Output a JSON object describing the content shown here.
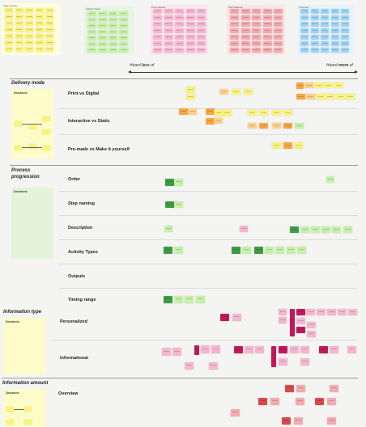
{
  "top_frames": {
    "titles": [
      "Step naming",
      "Activity Types",
      "Personalized",
      "Informational",
      "Overview"
    ]
  },
  "scale": {
    "less_pre": "Heard ",
    "less_em": "less",
    "less_post": " of",
    "more_pre": "Heard ",
    "more_em": "more",
    "more_post": " of"
  },
  "sections": {
    "delivery": {
      "title": "Delivery mode",
      "panel_title": "Decisions",
      "rows": [
        "Print vs Digital",
        "Interactive vs Static",
        "Pre-made vs Make it yourself"
      ]
    },
    "process": {
      "title_line1": "Process",
      "title_line2": "progression",
      "panel_title": "Decisions",
      "rows": [
        "Order",
        "Step naming",
        "Description",
        "Activity Types",
        "Outputs",
        "Timing range"
      ]
    },
    "information_type": {
      "title": "Information type",
      "panel_title": "Decisions",
      "rows": [
        "Personalized",
        "Informational"
      ]
    },
    "information_amount": {
      "title": "Information amount",
      "panel_title": "Decisions",
      "rows": [
        "Overview"
      ]
    }
  },
  "colors": {
    "yellow": "#fbf37a",
    "green": "#c6f0a8",
    "dark_green": "#3e9b45",
    "pink": "#f6b6cf",
    "magenta": "#c2185b",
    "red_light": "#f3aab0",
    "red": "#d84a4a",
    "blue": "#9fd3f5",
    "orange": "#f5a742",
    "orange_light": "#ffd08a",
    "panel_yellow": "#fdfbc8",
    "panel_green": "#e4f4d8"
  }
}
